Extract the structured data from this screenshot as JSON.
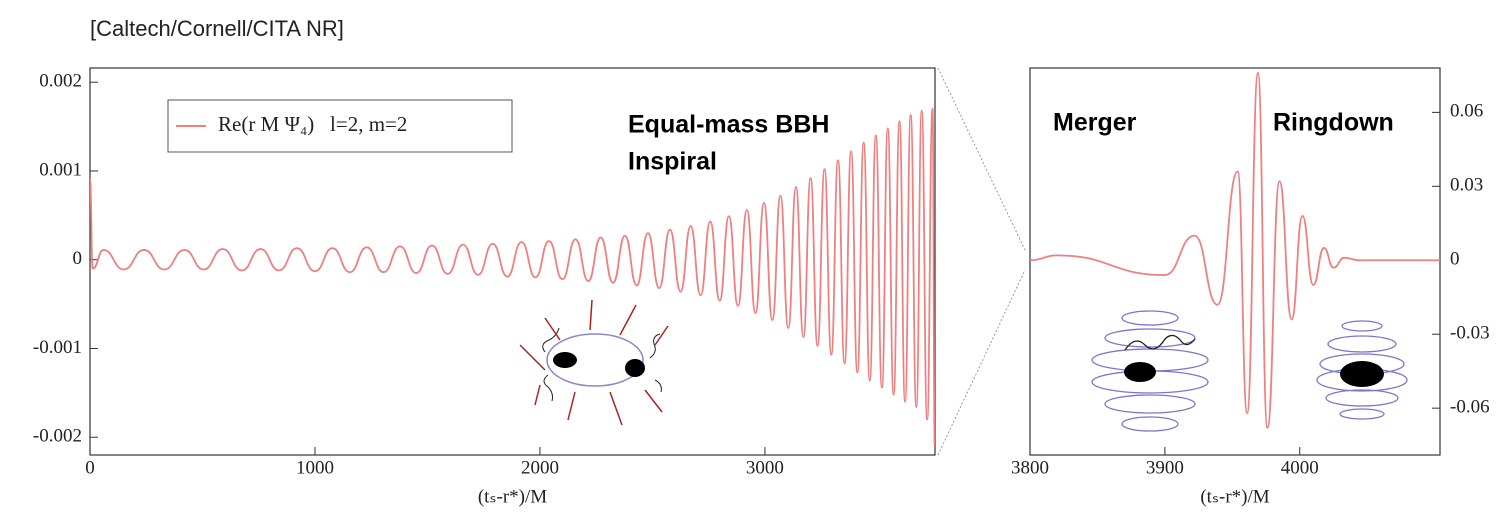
{
  "source": "[Caltech/Cornell/CITA NR]",
  "chart_data": [
    {
      "type": "line",
      "xlabel": "(tₛ-r*)/M",
      "yaxis": "left",
      "xlim": [
        0,
        3756
      ],
      "xticks": [
        0,
        1000,
        2000,
        3000
      ],
      "ylim": [
        -0.0022,
        0.00216
      ],
      "yticks": [
        -0.002,
        -0.001,
        0,
        0.001,
        0.002
      ],
      "annotations": [
        "Equal-mass BBH",
        "Inspiral"
      ],
      "series": [
        {
          "name": "Re(r M Ψ₄)   l=2, m=2",
          "color": "#ee8080",
          "x": [
            0,
            12,
            60,
            150,
            240,
            330,
            420,
            505,
            590,
            675,
            758,
            840,
            920,
            1000,
            1078,
            1155,
            1230,
            1305,
            1378,
            1450,
            1520,
            1590,
            1658,
            1725,
            1790,
            1855,
            1918,
            1980,
            2040,
            2100,
            2158,
            2215,
            2270,
            2325,
            2378,
            2430,
            2480,
            2530,
            2578,
            2625,
            2670,
            2714,
            2757,
            2799,
            2840,
            2880,
            2920,
            2958,
            2996,
            3033,
            3069,
            3104,
            3138,
            3171,
            3203,
            3234,
            3265,
            3295,
            3325,
            3354,
            3383,
            3411,
            3439,
            3466,
            3493,
            3520,
            3546,
            3572,
            3598,
            3623,
            3648,
            3673,
            3697,
            3721,
            3745,
            3755
          ],
          "values": [
            0.0009,
            -0.0001,
            0.00011,
            -0.00011,
            0.00011,
            -0.00011,
            0.00011,
            -0.00011,
            0.00012,
            -0.00012,
            0.00012,
            -0.00012,
            0.00013,
            -0.00013,
            0.00013,
            -0.00014,
            0.00014,
            -0.00014,
            0.00015,
            -0.00015,
            0.00016,
            -0.00016,
            0.00017,
            -0.00017,
            0.00018,
            -0.00019,
            0.0002,
            -0.0002,
            0.00021,
            -0.00022,
            0.00023,
            -0.00024,
            0.00025,
            -0.00026,
            0.00027,
            -0.00029,
            0.0003,
            -0.00032,
            0.00034,
            -0.00036,
            0.00038,
            -0.0004,
            0.00043,
            -0.00046,
            0.00049,
            -0.00052,
            0.00056,
            -0.0006,
            0.00064,
            -0.00068,
            0.00072,
            -0.00077,
            0.00082,
            -0.00087,
            0.00092,
            -0.00097,
            0.00102,
            -0.00107,
            0.00112,
            -0.00117,
            0.00122,
            -0.00127,
            0.00132,
            -0.00136,
            0.0014,
            -0.00144,
            0.00148,
            -0.00152,
            0.00156,
            -0.0016,
            0.00163,
            -0.00166,
            0.00168,
            -0.0018,
            0.0017,
            -0.0021
          ]
        }
      ]
    },
    {
      "type": "line",
      "xlabel": "(tₛ-r*)/M",
      "yaxis": "right",
      "xlim": [
        3800,
        4104
      ],
      "xticks": [
        3800,
        3900,
        4000
      ],
      "ylim": [
        -0.079,
        0.078
      ],
      "yticks": [
        -0.06,
        -0.03,
        0,
        0.03,
        0.06
      ],
      "annotations": [
        "Merger",
        "Ringdown"
      ],
      "series": [
        {
          "color": "#ee8080",
          "x": [
            3800,
            3820,
            3900,
            3922,
            3939,
            3954,
            3961,
            3969,
            3976,
            3985,
            3994,
            4002,
            4010,
            4018,
            4025,
            4033,
            4044,
            4104
          ],
          "values": [
            0,
            0.002,
            -0.006,
            0.01,
            -0.018,
            0.036,
            -0.062,
            0.076,
            -0.068,
            0.032,
            -0.024,
            0.018,
            -0.01,
            0.005,
            -0.003,
            0.001,
            0,
            0
          ]
        }
      ]
    }
  ]
}
